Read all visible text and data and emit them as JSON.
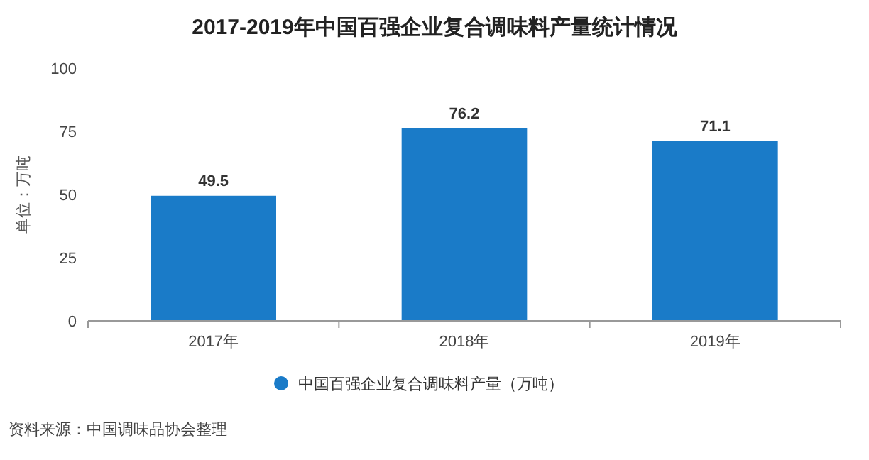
{
  "chart_data": {
    "type": "bar",
    "title": "2017-2019年中国百强企业复合调味料产量统计情况",
    "ylabel": "单位：万吨",
    "categories": [
      "2017年",
      "2018年",
      "2019年"
    ],
    "series": [
      {
        "name": "中国百强企业复合调味料产量（万吨）",
        "color": "#1a7bc8",
        "values": [
          49.5,
          76.2,
          71.1
        ]
      }
    ],
    "ylim": [
      0,
      100
    ],
    "yticks": [
      0,
      25,
      50,
      75,
      100
    ],
    "data_labels": true,
    "legend": "bottom",
    "grid": false,
    "annotations": [
      "资料来源：中国调味品协会整理"
    ]
  }
}
